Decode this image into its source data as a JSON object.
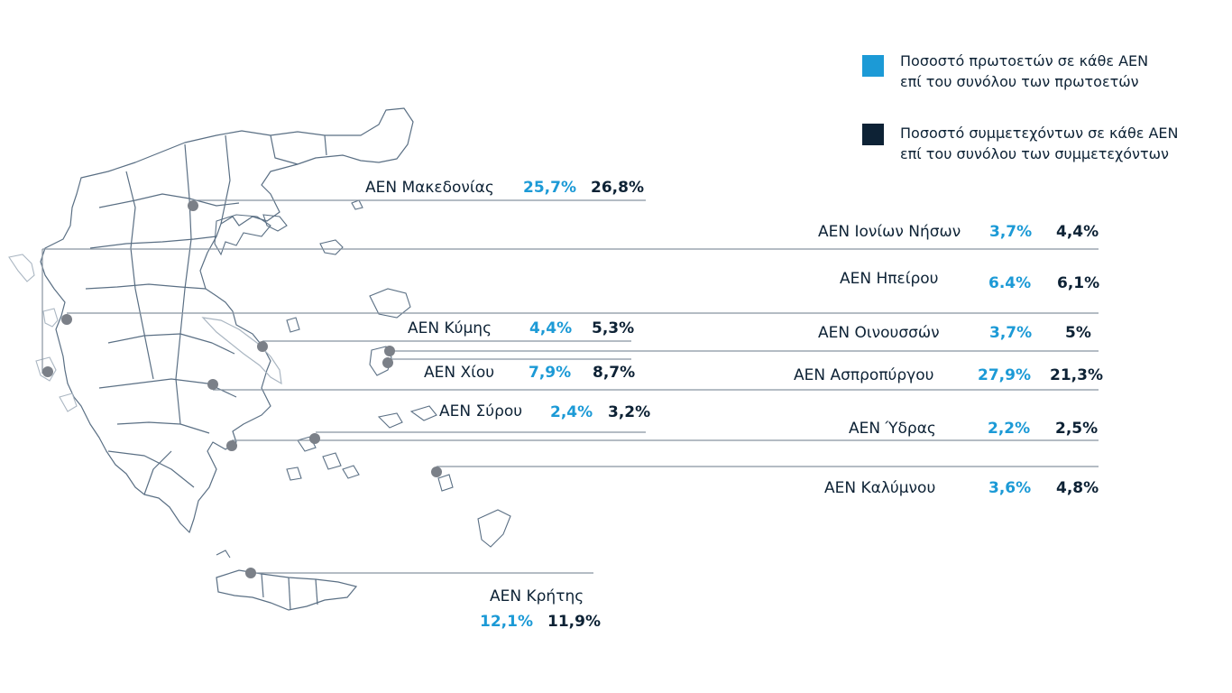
{
  "colors": {
    "first_year": "#1c9ad6",
    "participants": "#0d2235",
    "map_border": "#5a6f84",
    "map_light": "#aab6c2",
    "marker": "#7b8088",
    "leader": "#8894a0"
  },
  "legend": [
    {
      "line1": "Ποσοστό πρωτοετών σε κάθε ΑΕΝ",
      "line2": "επί του συνόλου των πρωτοετών",
      "color": "#1c9ad6"
    },
    {
      "line1": "Ποσοστό συμμετεχόντων σε κάθε ΑΕΝ",
      "line2": "επί του συνόλου των συμμετεχόντων",
      "color": "#0d2235"
    }
  ],
  "academies": [
    {
      "name": "ΑΕΝ Μακεδονίας",
      "first": "25,7%",
      "participants": "26,8%"
    },
    {
      "name": "ΑΕΝ Ιονίων Νήσων",
      "first": "3,7%",
      "participants": "4,4%"
    },
    {
      "name": "ΑΕΝ Ηπείρου",
      "first": "6.4%",
      "participants": "6,1%"
    },
    {
      "name": "ΑΕΝ Κύμης",
      "first": "4,4%",
      "participants": "5,3%"
    },
    {
      "name": "ΑΕΝ Οινουσσών",
      "first": "3,7%",
      "participants": "5%"
    },
    {
      "name": "ΑΕΝ Χίου",
      "first": "7,9%",
      "participants": "8,7%"
    },
    {
      "name": "ΑΕΝ Ασπροπύργου",
      "first": "27,9%",
      "participants": "21,3%"
    },
    {
      "name": "ΑΕΝ Σύρου",
      "first": "2,4%",
      "participants": "3,2%"
    },
    {
      "name": "ΑΕΝ Ύδρας",
      "first": "2,2%",
      "participants": "2,5%"
    },
    {
      "name": "ΑΕΝ Καλύμνου",
      "first": "3,6%",
      "participants": "4,8%"
    },
    {
      "name": "ΑΕΝ Κρήτης",
      "first": "12,1%",
      "participants": "11,9%"
    }
  ]
}
